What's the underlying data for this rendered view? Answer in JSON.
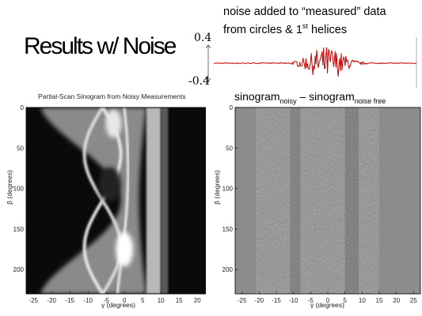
{
  "slide": {
    "title": "Results w/ Noise",
    "noise_caption_line1": "noise added to “measured” data",
    "noise_caption_line2a": "from circles & 1",
    "noise_caption_sup": "st",
    "noise_caption_line2b": " helices"
  },
  "noise_plot": {
    "ymax_label": "0.4",
    "ymin_label": "-0.4"
  },
  "left_plot": {
    "title": "Partial-Scan Sinogram from Noisy Measurements",
    "xlabel": "γ (degrees)",
    "ylabel": "β (degrees)"
  },
  "right_plot": {
    "title_main1": "sinogram",
    "title_sub1": "noisy",
    "title_main2": " – sinogram",
    "title_sub2": "noise free",
    "xlabel": "γ (degrees)",
    "ylabel": "β (degrees)"
  },
  "chart_data": [
    {
      "type": "heatmap",
      "title": "Partial-Scan Sinogram from Noisy Measurements",
      "xlabel": "γ (degrees)",
      "ylabel": "β (degrees)",
      "xlim": [
        -27,
        23
      ],
      "ylim": [
        0,
        230
      ],
      "xticks": [
        -25,
        -20,
        -15,
        -10,
        -5,
        0,
        5,
        10,
        15,
        20
      ],
      "yticks": [
        0,
        50,
        100,
        150,
        200
      ]
    },
    {
      "type": "heatmap",
      "title": "sinogram noisy – sinogram noise free",
      "xlabel": "γ (degrees)",
      "ylabel": "β (degrees)",
      "xlim": [
        -27,
        27
      ],
      "ylim": [
        0,
        230
      ],
      "xticks": [
        -25,
        -20,
        -15,
        -10,
        -5,
        0,
        5,
        10,
        15,
        20,
        25
      ],
      "yticks": [
        0,
        50,
        100,
        150,
        200
      ]
    },
    {
      "type": "line",
      "ylim": [
        -0.4,
        0.4
      ],
      "yticks": [
        -0.4,
        0.4
      ],
      "series": [
        {
          "color": "#cc0000"
        }
      ]
    }
  ]
}
